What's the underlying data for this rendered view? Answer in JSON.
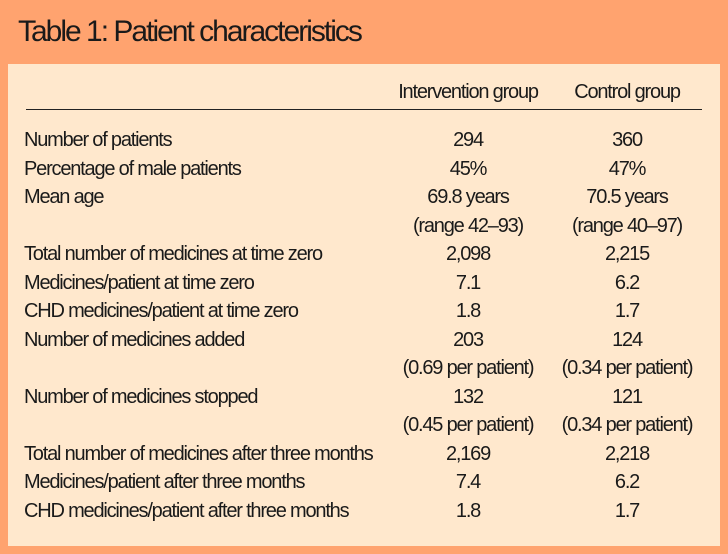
{
  "title": "Table 1: Patient characteristics",
  "columns": [
    "Intervention group",
    "Control group"
  ],
  "colors": {
    "header_bg": "#FFA36F",
    "panel_bg": "#FFE8CD"
  },
  "rows": [
    {
      "label": "Number of patients",
      "intervention": [
        "294"
      ],
      "control": [
        "360"
      ]
    },
    {
      "label": "Percentage of male patients",
      "intervention": [
        "45%"
      ],
      "control": [
        "47%"
      ]
    },
    {
      "label": "Mean age",
      "intervention": [
        "69.8 years",
        "(range 42–93)"
      ],
      "control": [
        "70.5 years",
        "(range 40–97)"
      ]
    },
    {
      "label": "Total number of medicines at time zero",
      "intervention": [
        "2,098"
      ],
      "control": [
        "2,215"
      ]
    },
    {
      "label": "Medicines/patient at time zero",
      "intervention": [
        "7.1"
      ],
      "control": [
        "6.2"
      ]
    },
    {
      "label": "CHD medicines/patient at time zero",
      "intervention": [
        "1.8"
      ],
      "control": [
        "1.7"
      ]
    },
    {
      "label": "Number of medicines added",
      "intervention": [
        "203",
        "(0.69 per patient)"
      ],
      "control": [
        "124",
        "(0.34 per patient)"
      ]
    },
    {
      "label": "Number of medicines stopped",
      "intervention": [
        "132",
        "(0.45 per patient)"
      ],
      "control": [
        "121",
        "(0.34 per patient)"
      ]
    },
    {
      "label": "Total number of medicines after three months",
      "intervention": [
        "2,169"
      ],
      "control": [
        "2,218"
      ]
    },
    {
      "label": "Medicines/patient after three months",
      "intervention": [
        "7.4"
      ],
      "control": [
        "6.2"
      ]
    },
    {
      "label": "CHD medicines/patient after three months",
      "intervention": [
        "1.8"
      ],
      "control": [
        "1.7"
      ]
    }
  ]
}
